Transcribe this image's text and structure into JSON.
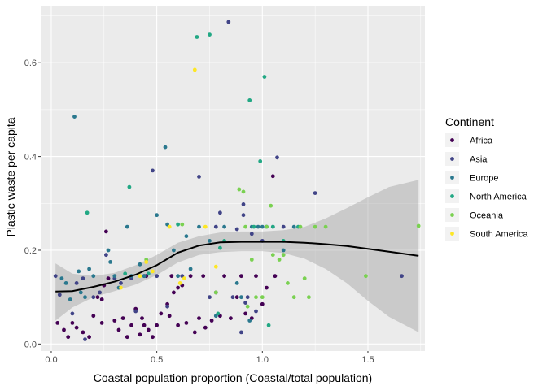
{
  "chart_data": {
    "type": "scatter",
    "xlabel": "Coastal population proportion (Coastal/total population)",
    "ylabel": "Plastic waste per capita",
    "xlim": [
      -0.05,
      1.77
    ],
    "ylim": [
      -0.015,
      0.72
    ],
    "x_ticks": [
      0.0,
      0.5,
      1.0,
      1.5
    ],
    "x_tick_labels": [
      "0.0",
      "0.5",
      "1.0",
      "1.5"
    ],
    "y_ticks": [
      0.0,
      0.2,
      0.4,
      0.6
    ],
    "y_tick_labels": [
      "0.0",
      "0.2",
      "0.4",
      "0.6"
    ],
    "grid": true,
    "panel_background": "#EBEBEB",
    "legend": {
      "title": "Continent",
      "position": "right",
      "entries": [
        {
          "name": "Africa",
          "color": "#440154"
        },
        {
          "name": "Asia",
          "color": "#414487"
        },
        {
          "name": "Europe",
          "color": "#2A788E"
        },
        {
          "name": "North America",
          "color": "#22A884"
        },
        {
          "name": "Oceania",
          "color": "#7AD151"
        },
        {
          "name": "South America",
          "color": "#FDE725"
        }
      ]
    },
    "smooth": {
      "x": [
        0.02,
        0.1,
        0.2,
        0.3,
        0.4,
        0.5,
        0.6,
        0.7,
        0.8,
        0.9,
        1.0,
        1.1,
        1.2,
        1.3,
        1.4,
        1.5,
        1.6,
        1.74
      ],
      "y": [
        0.112,
        0.113,
        0.122,
        0.133,
        0.148,
        0.168,
        0.195,
        0.21,
        0.217,
        0.218,
        0.218,
        0.218,
        0.216,
        0.213,
        0.209,
        0.203,
        0.197,
        0.188
      ],
      "lower": [
        0.05,
        0.078,
        0.1,
        0.113,
        0.127,
        0.147,
        0.174,
        0.19,
        0.196,
        0.198,
        0.198,
        0.194,
        0.182,
        0.16,
        0.13,
        0.092,
        0.058,
        0.025
      ],
      "upper": [
        0.172,
        0.15,
        0.145,
        0.152,
        0.168,
        0.19,
        0.216,
        0.23,
        0.238,
        0.24,
        0.24,
        0.243,
        0.25,
        0.268,
        0.29,
        0.313,
        0.335,
        0.35
      ]
    },
    "series": [
      {
        "name": "Africa",
        "color": "#440154",
        "points": [
          [
            0.03,
            0.045
          ],
          [
            0.06,
            0.03
          ],
          [
            0.08,
            0.015
          ],
          [
            0.1,
            0.045
          ],
          [
            0.12,
            0.035
          ],
          [
            0.15,
            0.025
          ],
          [
            0.18,
            0.015
          ],
          [
            0.2,
            0.06
          ],
          [
            0.22,
            0.1
          ],
          [
            0.24,
            0.045
          ],
          [
            0.26,
            0.24
          ],
          [
            0.27,
            0.14
          ],
          [
            0.3,
            0.05
          ],
          [
            0.32,
            0.03
          ],
          [
            0.34,
            0.055
          ],
          [
            0.36,
            0.015
          ],
          [
            0.38,
            0.04
          ],
          [
            0.4,
            0.075
          ],
          [
            0.42,
            0.02
          ],
          [
            0.44,
            0.04
          ],
          [
            0.46,
            0.03
          ],
          [
            0.48,
            0.015
          ],
          [
            0.5,
            0.04
          ],
          [
            0.52,
            0.065
          ],
          [
            0.55,
            0.085
          ],
          [
            0.56,
            0.06
          ],
          [
            0.58,
            0.11
          ],
          [
            0.6,
            0.04
          ],
          [
            0.62,
            0.125
          ],
          [
            0.64,
            0.045
          ],
          [
            0.66,
            0.145
          ],
          [
            0.68,
            0.025
          ],
          [
            0.7,
            0.055
          ],
          [
            0.72,
            0.145
          ],
          [
            0.73,
            0.035
          ],
          [
            0.76,
            0.05
          ],
          [
            0.78,
            0.11
          ],
          [
            0.8,
            0.06
          ],
          [
            0.82,
            0.145
          ],
          [
            0.85,
            0.055
          ],
          [
            0.88,
            0.1
          ],
          [
            0.9,
            0.145
          ],
          [
            0.92,
            0.065
          ],
          [
            0.95,
            0.055
          ],
          [
            0.97,
            0.145
          ],
          [
            1.0,
            0.085
          ],
          [
            1.02,
            0.12
          ],
          [
            1.05,
            0.358
          ],
          [
            1.06,
            0.145
          ],
          [
            0.57,
            0.145
          ],
          [
            0.6,
            0.12
          ],
          [
            0.45,
            0.145
          ],
          [
            0.24,
            0.095
          ],
          [
            0.43,
            0.055
          ],
          [
            0.25,
            0.125
          ]
        ]
      },
      {
        "name": "Asia",
        "color": "#414487",
        "points": [
          [
            0.02,
            0.145
          ],
          [
            0.04,
            0.105
          ],
          [
            0.1,
            0.065
          ],
          [
            0.12,
            0.13
          ],
          [
            0.15,
            0.14
          ],
          [
            0.16,
            0.01
          ],
          [
            0.2,
            0.1
          ],
          [
            0.23,
            0.11
          ],
          [
            0.26,
            0.19
          ],
          [
            0.3,
            0.14
          ],
          [
            0.33,
            0.13
          ],
          [
            0.38,
            0.14
          ],
          [
            0.4,
            0.07
          ],
          [
            0.44,
            0.145
          ],
          [
            0.48,
            0.37
          ],
          [
            0.5,
            0.145
          ],
          [
            0.55,
            0.08
          ],
          [
            0.62,
            0.145
          ],
          [
            0.7,
            0.357
          ],
          [
            0.75,
            0.1
          ],
          [
            0.78,
            0.25
          ],
          [
            0.8,
            0.28
          ],
          [
            0.84,
            0.687
          ],
          [
            0.86,
            0.1
          ],
          [
            0.88,
            0.245
          ],
          [
            0.91,
            0.275
          ],
          [
            0.91,
            0.298
          ],
          [
            0.92,
            0.088
          ],
          [
            0.93,
            0.1
          ],
          [
            0.95,
            0.235
          ],
          [
            1.0,
            0.22
          ],
          [
            1.07,
            0.398
          ],
          [
            1.1,
            0.25
          ],
          [
            1.25,
            0.322
          ],
          [
            1.66,
            0.145
          ],
          [
            0.9,
            0.025
          ],
          [
            0.97,
            0.07
          ]
        ]
      },
      {
        "name": "Europe",
        "color": "#2A788E",
        "points": [
          [
            0.05,
            0.14
          ],
          [
            0.07,
            0.13
          ],
          [
            0.09,
            0.095
          ],
          [
            0.11,
            0.485
          ],
          [
            0.13,
            0.155
          ],
          [
            0.14,
            0.11
          ],
          [
            0.16,
            0.1
          ],
          [
            0.18,
            0.16
          ],
          [
            0.2,
            0.145
          ],
          [
            0.27,
            0.2
          ],
          [
            0.28,
            0.175
          ],
          [
            0.3,
            0.145
          ],
          [
            0.32,
            0.12
          ],
          [
            0.36,
            0.25
          ],
          [
            0.38,
            0.145
          ],
          [
            0.42,
            0.17
          ],
          [
            0.44,
            0.145
          ],
          [
            0.5,
            0.275
          ],
          [
            0.54,
            0.42
          ],
          [
            0.55,
            0.255
          ],
          [
            0.58,
            0.2
          ],
          [
            0.6,
            0.145
          ],
          [
            0.64,
            0.23
          ],
          [
            0.66,
            0.16
          ],
          [
            0.7,
            0.25
          ],
          [
            0.75,
            0.22
          ],
          [
            0.78,
            0.06
          ],
          [
            0.82,
            0.25
          ],
          [
            0.9,
            0.1
          ],
          [
            0.95,
            0.25
          ],
          [
            0.98,
            0.25
          ],
          [
            1.0,
            0.25
          ],
          [
            1.02,
            0.25
          ],
          [
            1.05,
            0.25
          ],
          [
            1.1,
            0.2
          ],
          [
            1.15,
            0.25
          ],
          [
            0.88,
            0.13
          ],
          [
            0.94,
            0.05
          ]
        ]
      },
      {
        "name": "North America",
        "color": "#22A884",
        "points": [
          [
            0.17,
            0.28
          ],
          [
            0.35,
            0.15
          ],
          [
            0.37,
            0.335
          ],
          [
            0.69,
            0.655
          ],
          [
            0.75,
            0.66
          ],
          [
            0.79,
            0.065
          ],
          [
            0.8,
            0.205
          ],
          [
            0.94,
            0.52
          ],
          [
            0.96,
            0.25
          ],
          [
            0.99,
            0.39
          ],
          [
            1.01,
            0.57
          ],
          [
            1.02,
            0.25
          ],
          [
            1.03,
            0.04
          ],
          [
            1.05,
            0.25
          ],
          [
            1.1,
            0.22
          ],
          [
            1.17,
            0.25
          ],
          [
            0.82,
            0.22
          ],
          [
            0.6,
            0.255
          ],
          [
            0.46,
            0.15
          ]
        ]
      },
      {
        "name": "Oceania",
        "color": "#7AD151",
        "points": [
          [
            0.45,
            0.18
          ],
          [
            0.62,
            0.255
          ],
          [
            0.78,
            0.11
          ],
          [
            0.89,
            0.33
          ],
          [
            0.91,
            0.325
          ],
          [
            0.92,
            0.25
          ],
          [
            0.93,
            0.08
          ],
          [
            0.95,
            0.18
          ],
          [
            0.97,
            0.1
          ],
          [
            1.0,
            0.1
          ],
          [
            1.02,
            0.25
          ],
          [
            1.04,
            0.295
          ],
          [
            1.05,
            0.19
          ],
          [
            1.08,
            0.18
          ],
          [
            1.1,
            0.19
          ],
          [
            1.12,
            0.13
          ],
          [
            1.15,
            0.1
          ],
          [
            1.18,
            0.25
          ],
          [
            1.2,
            0.14
          ],
          [
            1.22,
            0.1
          ],
          [
            1.25,
            0.25
          ],
          [
            1.3,
            0.25
          ],
          [
            1.49,
            0.145
          ],
          [
            1.74,
            0.252
          ]
        ]
      },
      {
        "name": "South America",
        "color": "#FDE725",
        "points": [
          [
            0.33,
            0.12
          ],
          [
            0.42,
            0.145
          ],
          [
            0.45,
            0.175
          ],
          [
            0.48,
            0.155
          ],
          [
            0.56,
            0.25
          ],
          [
            0.61,
            0.13
          ],
          [
            0.68,
            0.585
          ],
          [
            0.73,
            0.25
          ],
          [
            0.78,
            0.165
          ],
          [
            0.63,
            0.14
          ]
        ]
      }
    ]
  }
}
